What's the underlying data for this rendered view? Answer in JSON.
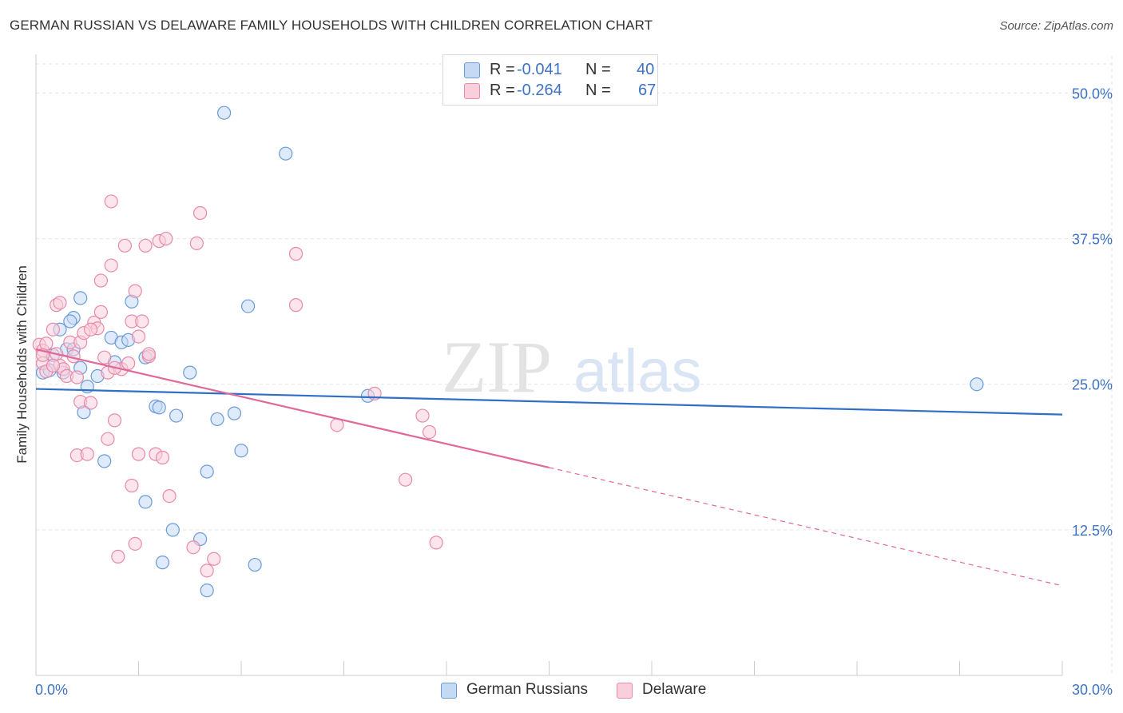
{
  "title": "GERMAN RUSSIAN VS DELAWARE FAMILY HOUSEHOLDS WITH CHILDREN CORRELATION CHART",
  "source": "Source: ZipAtlas.com",
  "watermark": {
    "zip": "ZIP",
    "atlas": "atlas"
  },
  "legend_top": {
    "rows": [
      {
        "r_label": "R =",
        "r_value": "-0.041",
        "n_label": "N =",
        "n_value": "40"
      },
      {
        "r_label": "R =",
        "r_value": "-0.264",
        "n_label": "N =",
        "n_value": "67"
      }
    ]
  },
  "colors": {
    "blue_fill": "#c5d9f5",
    "blue_stroke": "#6a9bd8",
    "blue_line": "#2f6fc7",
    "pink_fill": "#f9cfdc",
    "pink_stroke": "#e88aa8",
    "pink_line": "#e0699a",
    "grid": "#e5e5e5",
    "axis_label": "#3d72c4"
  },
  "chart_data": {
    "type": "scatter",
    "title": "GERMAN RUSSIAN VS DELAWARE FAMILY HOUSEHOLDS WITH CHILDREN CORRELATION CHART",
    "xlabel": "",
    "ylabel": "Family Households with Children",
    "xlim": [
      0,
      30
    ],
    "ylim": [
      0,
      52.5
    ],
    "x_tick_labels": [
      "0.0%",
      "30.0%"
    ],
    "y_ticks": [
      12.5,
      25.0,
      37.5,
      50.0
    ],
    "y_tick_labels": [
      "12.5%",
      "25.0%",
      "37.5%",
      "50.0%"
    ],
    "grid": true,
    "legend_position": "bottom",
    "series": [
      {
        "name": "German Russians",
        "r": -0.041,
        "n": 40,
        "trend": {
          "x0": 0,
          "y0": 24.6,
          "x1": 30,
          "y1": 22.4,
          "solid_until": 30
        },
        "points": [
          [
            0.2,
            26.0
          ],
          [
            0.5,
            27.5
          ],
          [
            0.4,
            26.2
          ],
          [
            0.7,
            29.7
          ],
          [
            0.8,
            26.0
          ],
          [
            1.1,
            30.7
          ],
          [
            1.0,
            30.4
          ],
          [
            0.9,
            28.0
          ],
          [
            1.3,
            32.4
          ],
          [
            1.3,
            26.4
          ],
          [
            1.4,
            22.6
          ],
          [
            1.5,
            24.8
          ],
          [
            1.8,
            25.7
          ],
          [
            2.0,
            18.4
          ],
          [
            2.2,
            29.0
          ],
          [
            2.3,
            26.9
          ],
          [
            2.5,
            28.6
          ],
          [
            2.7,
            28.8
          ],
          [
            2.8,
            32.1
          ],
          [
            3.2,
            27.3
          ],
          [
            3.2,
            14.9
          ],
          [
            3.5,
            23.1
          ],
          [
            3.6,
            23.0
          ],
          [
            3.7,
            9.7
          ],
          [
            4.0,
            12.5
          ],
          [
            4.1,
            22.3
          ],
          [
            4.5,
            26.0
          ],
          [
            4.8,
            11.7
          ],
          [
            5.0,
            17.5
          ],
          [
            5.0,
            7.3
          ],
          [
            5.3,
            22.0
          ],
          [
            5.5,
            48.3
          ],
          [
            5.8,
            22.5
          ],
          [
            6.0,
            19.3
          ],
          [
            6.2,
            31.7
          ],
          [
            6.4,
            9.5
          ],
          [
            7.3,
            44.8
          ],
          [
            9.7,
            24.0
          ],
          [
            27.5,
            25.0
          ],
          [
            1.1,
            28.0
          ]
        ]
      },
      {
        "name": "Delaware",
        "r": -0.264,
        "n": 67,
        "trend": {
          "x0": 0,
          "y0": 28.0,
          "x1": 30,
          "y1": 7.7,
          "solid_until": 15
        },
        "points": [
          [
            0.1,
            28.4
          ],
          [
            0.2,
            27.9
          ],
          [
            0.2,
            26.8
          ],
          [
            0.3,
            28.5
          ],
          [
            0.3,
            26.1
          ],
          [
            0.5,
            29.7
          ],
          [
            0.6,
            27.6
          ],
          [
            0.6,
            31.8
          ],
          [
            0.7,
            26.6
          ],
          [
            0.8,
            26.3
          ],
          [
            0.9,
            25.7
          ],
          [
            0.7,
            32.0
          ],
          [
            1.0,
            28.6
          ],
          [
            1.1,
            27.4
          ],
          [
            1.2,
            25.6
          ],
          [
            1.3,
            28.6
          ],
          [
            1.3,
            23.5
          ],
          [
            1.2,
            18.9
          ],
          [
            1.4,
            29.4
          ],
          [
            1.5,
            19.0
          ],
          [
            1.6,
            23.4
          ],
          [
            1.7,
            30.3
          ],
          [
            1.8,
            29.8
          ],
          [
            1.9,
            33.9
          ],
          [
            1.9,
            31.2
          ],
          [
            2.0,
            27.3
          ],
          [
            2.1,
            26.0
          ],
          [
            2.1,
            20.3
          ],
          [
            2.2,
            40.7
          ],
          [
            2.2,
            35.2
          ],
          [
            2.3,
            21.9
          ],
          [
            2.4,
            10.2
          ],
          [
            2.5,
            26.3
          ],
          [
            2.6,
            36.9
          ],
          [
            2.7,
            26.8
          ],
          [
            2.8,
            30.4
          ],
          [
            2.8,
            16.3
          ],
          [
            2.9,
            11.3
          ],
          [
            2.9,
            33.0
          ],
          [
            3.0,
            19.0
          ],
          [
            3.0,
            29.1
          ],
          [
            3.1,
            30.4
          ],
          [
            3.2,
            36.9
          ],
          [
            3.3,
            27.4
          ],
          [
            3.3,
            27.6
          ],
          [
            3.5,
            19.0
          ],
          [
            3.6,
            37.3
          ],
          [
            3.7,
            18.7
          ],
          [
            3.8,
            37.5
          ],
          [
            3.9,
            15.4
          ],
          [
            4.6,
            11.0
          ],
          [
            4.7,
            37.1
          ],
          [
            4.8,
            39.7
          ],
          [
            5.0,
            9.0
          ],
          [
            5.2,
            10.0
          ],
          [
            7.6,
            36.2
          ],
          [
            7.6,
            31.8
          ],
          [
            8.8,
            21.5
          ],
          [
            9.9,
            24.2
          ],
          [
            10.8,
            16.8
          ],
          [
            11.3,
            22.3
          ],
          [
            11.5,
            20.9
          ],
          [
            11.7,
            11.4
          ],
          [
            0.2,
            27.5
          ],
          [
            1.6,
            29.7
          ],
          [
            2.3,
            26.4
          ],
          [
            0.5,
            26.6
          ]
        ]
      }
    ]
  },
  "legend_bottom": {
    "items": [
      {
        "label": "German Russians"
      },
      {
        "label": "Delaware"
      }
    ]
  }
}
